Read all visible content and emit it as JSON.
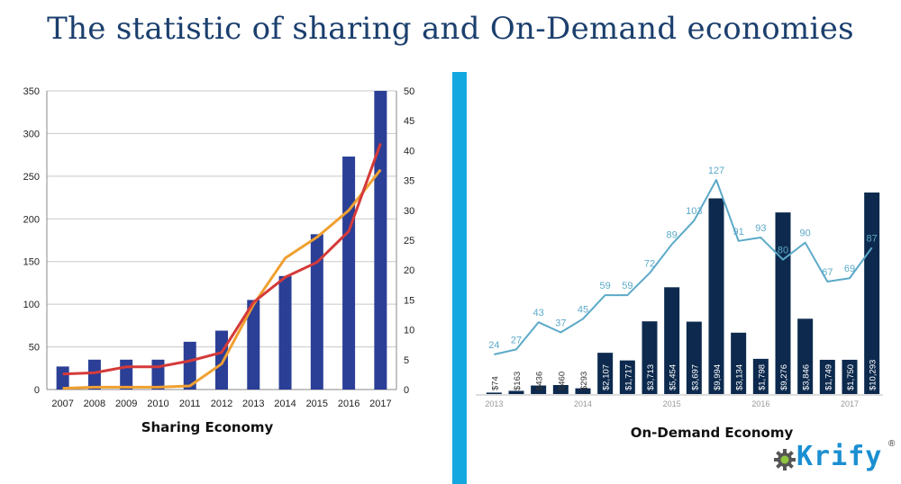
{
  "title": "The statistic of sharing and On-Demand economies",
  "brand": {
    "name": "Krify",
    "reg_mark": "®",
    "icon": "gear-icon"
  },
  "colors": {
    "title": "#1b3f6e",
    "divider": "#14a8e0",
    "sharing_bar": "#2b3f96",
    "sharing_red": "#d53a3a",
    "sharing_orange": "#f0a030",
    "ondemand_bar": "#0d2a4e",
    "ondemand_line": "#5ba9c8",
    "logo": "#1b8fd1"
  },
  "chart_data": [
    {
      "type": "bar",
      "caption": "Sharing Economy",
      "categories": [
        "2007",
        "2008",
        "2009",
        "2010",
        "2011",
        "2012",
        "2013",
        "2014",
        "2015",
        "2016",
        "2017"
      ],
      "series": [
        {
          "kind": "bar",
          "axis": "left",
          "values": [
            27,
            35,
            35,
            35,
            56,
            69,
            105,
            133,
            182,
            273,
            350
          ]
        },
        {
          "kind": "line",
          "axis": "right",
          "color": "red",
          "values": [
            2.6,
            2.8,
            3.8,
            3.8,
            4.8,
            6.2,
            14.6,
            18.8,
            21.3,
            26.5,
            41.2
          ]
        },
        {
          "kind": "line",
          "axis": "right",
          "color": "orange",
          "values": [
            0.2,
            0.4,
            0.4,
            0.4,
            0.6,
            4.3,
            14.2,
            22,
            25.5,
            30,
            36.8
          ]
        }
      ],
      "ylim_left": [
        0,
        350
      ],
      "yticks_left": [
        "0",
        "50",
        "100",
        "150",
        "200",
        "250",
        "300",
        "350"
      ],
      "ylim_right": [
        0,
        50
      ],
      "yticks_right": [
        "0",
        "5",
        "10",
        "15",
        "20",
        "25",
        "30",
        "35",
        "40",
        "45",
        "50"
      ],
      "grid": true
    },
    {
      "type": "bar",
      "caption": "On-Demand Economy",
      "year_labels": [
        "2013",
        "2014",
        "2015",
        "2016",
        "2017"
      ],
      "bar_values": [
        74,
        163,
        436,
        460,
        293,
        2107,
        1717,
        3713,
        5454,
        3697,
        9994,
        3134,
        1798,
        9276,
        3846,
        1749,
        1750,
        10293
      ],
      "bar_labels": [
        "$74",
        "$163",
        "$436",
        "$460",
        "$293",
        "$2,107",
        "$1,717",
        "$3,713",
        "$5,454",
        "$3,697",
        "$9,994",
        "$3,134",
        "$1,798",
        "$9,276",
        "$3,846",
        "$1,749",
        "$1,750",
        "$10,293"
      ],
      "line_values": [
        24,
        27,
        43,
        37,
        45,
        59,
        59,
        72,
        89,
        103,
        127,
        91,
        93,
        80,
        90,
        67,
        69,
        87
      ],
      "line_labels": [
        "24",
        "27",
        "43",
        "37",
        "45",
        "59",
        "59",
        "72",
        "89",
        "103",
        "127",
        "91",
        "93",
        "80",
        "90",
        "67",
        "69",
        "87"
      ]
    }
  ]
}
